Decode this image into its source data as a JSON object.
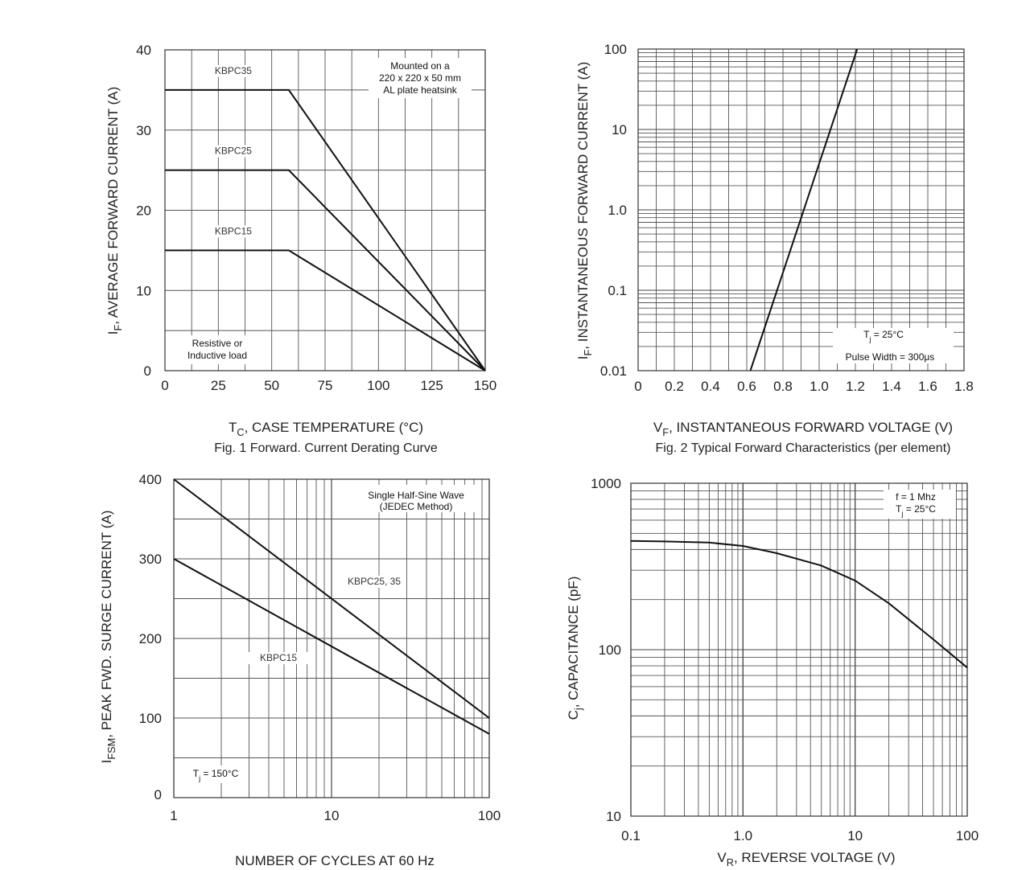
{
  "chart_data": [
    {
      "type": "line",
      "title": "Fig. 1  Forward. Current Derating Curve",
      "xlabel": {
        "main": "T",
        "sub": "C",
        "rest": ", CASE TEMPERATURE (°C)"
      },
      "ylabel": {
        "main": "I",
        "sub": "F",
        "rest": ", AVERAGE FORWARD CURRENT (A)"
      },
      "xlim": [
        0,
        150
      ],
      "ylim": [
        0,
        40
      ],
      "xticks": [
        0,
        25,
        50,
        75,
        100,
        125,
        150
      ],
      "xtick_labels": [
        "0",
        "25",
        "50",
        "75",
        "100",
        "125",
        "150"
      ],
      "yticks": [
        0,
        10,
        20,
        30,
        40
      ],
      "ytick_labels": [
        "0",
        "10",
        "20",
        "30",
        "40"
      ],
      "annotations": {
        "mount_line1": "Mounted on a",
        "mount_line2": "220 x 220 x 50 mm",
        "mount_line3": "AL plate heatsink",
        "load_line1": "Resistive or",
        "load_line2": "Inductive load"
      },
      "series": [
        {
          "name": "KBPC35",
          "x": [
            0,
            58,
            150
          ],
          "y": [
            35,
            35,
            0
          ]
        },
        {
          "name": "KBPC25",
          "x": [
            0,
            58,
            150
          ],
          "y": [
            25,
            25,
            0
          ]
        },
        {
          "name": "KBPC15",
          "x": [
            0,
            58,
            150
          ],
          "y": [
            15,
            15,
            0
          ]
        }
      ]
    },
    {
      "type": "line",
      "title": "Fig. 2  Typical Forward Characteristics (per element)",
      "xlabel": {
        "main": "V",
        "sub": "F",
        "rest": ", INSTANTANEOUS FORWARD VOLTAGE (V)"
      },
      "ylabel": {
        "main": "I",
        "sub": "F",
        "rest": ", INSTANTANEOUS FORWARD CURRENT (A)"
      },
      "xlim": [
        0,
        1.8
      ],
      "ylim": [
        0.01,
        100
      ],
      "yscale": "log",
      "xtick_labels": [
        "0",
        "0.2",
        "0.4",
        "0.6",
        "0.8",
        "1.0",
        "1.2",
        "1.4",
        "1.6",
        "1.8"
      ],
      "ytick_labels": [
        "0.01",
        "0.1",
        "1.0",
        "10",
        "100"
      ],
      "annotations": {
        "tj_main": "T",
        "tj_sub": "j",
        "tj_rest": " = 25°C",
        "pulse": "Pulse Width = 300μs"
      },
      "series": [
        {
          "name": "IF",
          "x": [
            0.62,
            1.21
          ],
          "y": [
            0.01,
            100
          ]
        }
      ]
    },
    {
      "type": "line",
      "title": "",
      "xlabel": {
        "main": "NUMBER OF CYCLES AT 60 Hz",
        "sub": "",
        "rest": ""
      },
      "ylabel": {
        "main": "I",
        "sub": "FSM",
        "rest": ", PEAK FWD. SURGE CURRENT (A)"
      },
      "xlim": [
        1,
        100
      ],
      "xscale": "log",
      "ylim": [
        0,
        400
      ],
      "xtick_labels": [
        "1",
        "10",
        "100"
      ],
      "ytick_labels": [
        "0",
        "100",
        "200",
        "300",
        "400"
      ],
      "annotations": {
        "wave_line1": "Single Half-Sine Wave",
        "wave_line2": "(JEDEC Method)",
        "tj_main": "T",
        "tj_sub": "j",
        "tj_rest": " = 150°C"
      },
      "series": [
        {
          "name": "KBPC25, 35",
          "x": [
            1,
            100
          ],
          "y": [
            400,
            100
          ]
        },
        {
          "name": "KBPC15",
          "x": [
            1,
            100
          ],
          "y": [
            300,
            80
          ]
        }
      ]
    },
    {
      "type": "line",
      "title": "",
      "xlabel": {
        "main": "V",
        "sub": "R",
        "rest": ", REVERSE VOLTAGE (V)"
      },
      "ylabel": {
        "main": "C",
        "sub": "j",
        "rest": ", CAPACITANCE (pF)"
      },
      "xlim": [
        0.1,
        100
      ],
      "xscale": "log",
      "ylim": [
        10,
        1000
      ],
      "yscale": "log",
      "xtick_labels": [
        "0.1",
        "1.0",
        "10",
        "100"
      ],
      "ytick_labels": [
        "10",
        "100",
        "1000"
      ],
      "annotations": {
        "freq": "f = 1 Mhz",
        "tj_main": "T",
        "tj_sub": "j",
        "tj_rest": " = 25°C"
      },
      "series": [
        {
          "name": "Cj",
          "x": [
            0.1,
            0.2,
            0.5,
            1,
            2,
            5,
            10,
            20,
            50,
            100
          ],
          "y": [
            450,
            447,
            440,
            420,
            380,
            320,
            260,
            190,
            115,
            78
          ]
        }
      ]
    }
  ]
}
